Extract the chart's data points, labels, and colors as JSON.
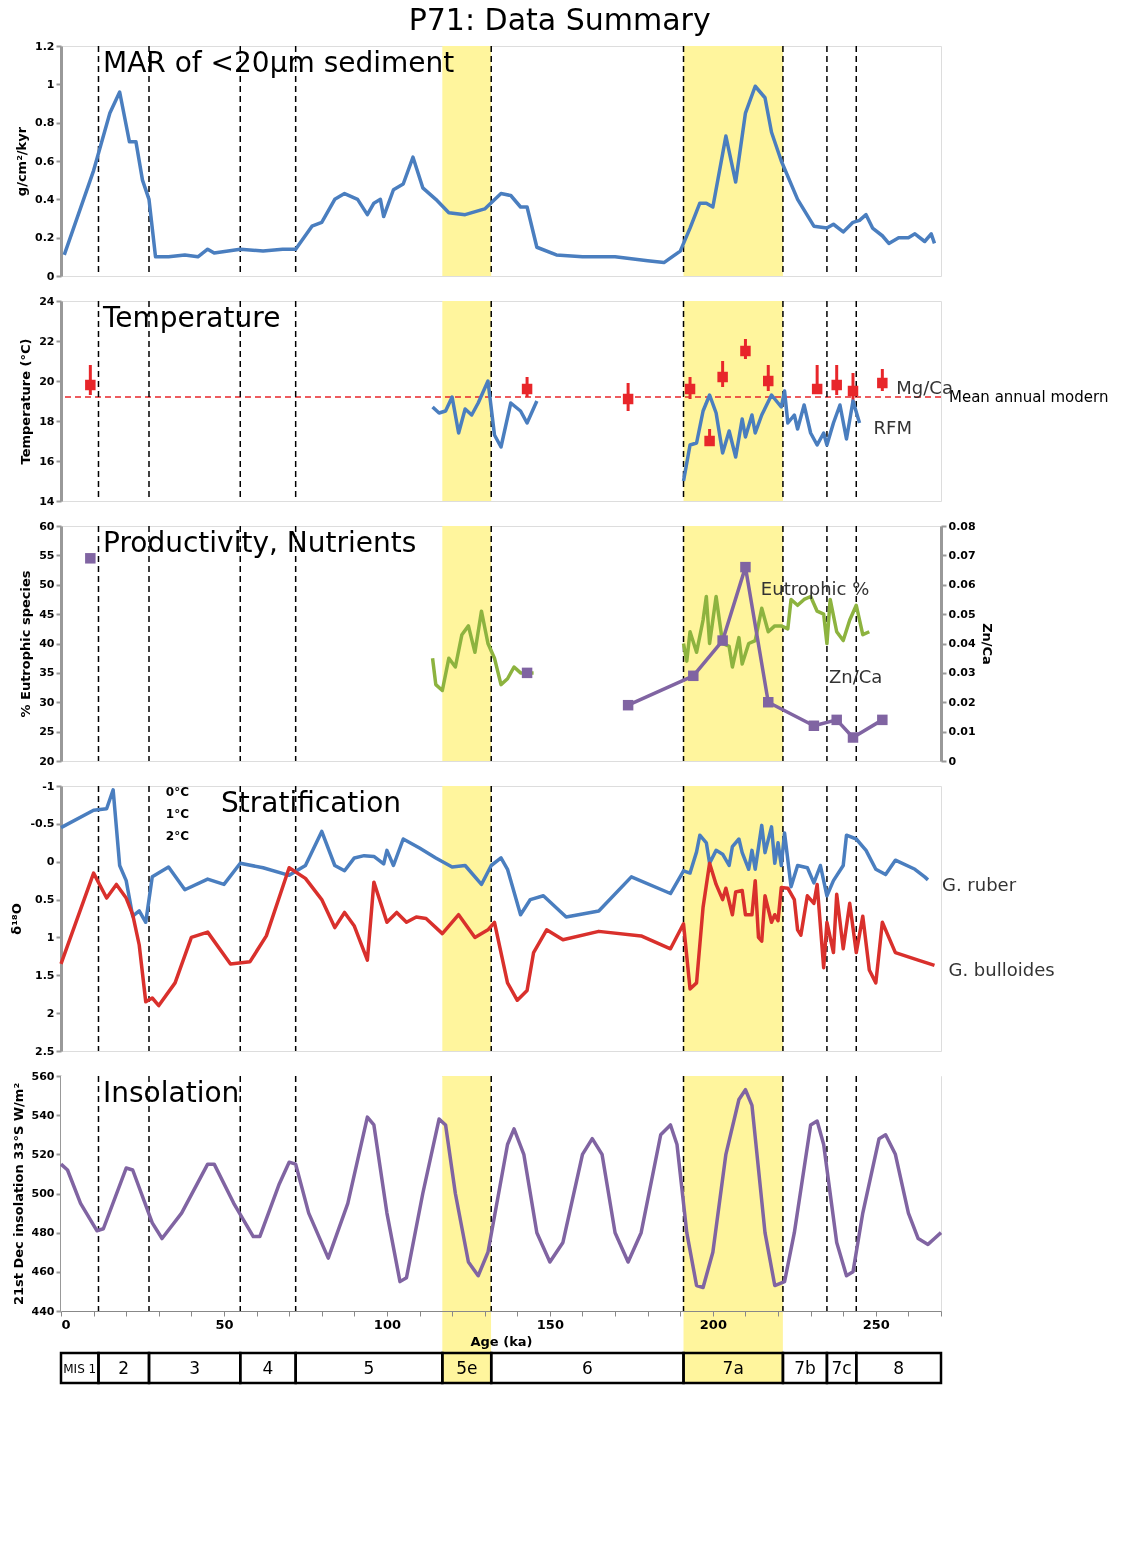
{
  "chart_data": [
    {
      "type": "line",
      "title": "P71: Data Summary",
      "annotations": [
        "MAR of <20µm sediment"
      ],
      "ylabel": "g/cm²/kyr",
      "tick_labels": "y",
      "xlim": [
        0,
        270
      ],
      "ylim": [
        0,
        1.2
      ],
      "yticks": [
        0,
        0.2,
        0.4,
        0.6,
        0.8,
        1,
        1.2
      ],
      "series": [
        {
          "color": "#4a7ebf",
          "x": [
            1,
            10,
            15,
            18,
            21,
            23,
            25,
            27,
            29,
            33,
            38,
            42,
            45,
            47,
            55,
            62,
            68,
            72,
            77,
            80,
            84,
            87,
            91,
            94,
            96,
            98,
            99,
            102,
            105,
            108,
            111,
            115,
            119,
            124,
            130,
            135,
            138,
            141,
            143,
            146,
            152,
            160,
            170,
            180,
            185,
            190,
            193,
            196,
            198,
            200,
            204,
            207,
            210,
            213,
            216,
            218,
            221,
            226,
            231,
            235,
            237,
            240,
            243,
            245,
            247,
            249,
            252,
            254,
            257,
            260,
            262,
            265,
            267,
            268
          ],
          "values": [
            0.11,
            0.55,
            0.85,
            0.96,
            0.7,
            0.7,
            0.5,
            0.4,
            0.1,
            0.1,
            0.11,
            0.1,
            0.14,
            0.12,
            0.14,
            0.13,
            0.14,
            0.14,
            0.26,
            0.28,
            0.4,
            0.43,
            0.4,
            0.32,
            0.38,
            0.4,
            0.31,
            0.45,
            0.48,
            0.62,
            0.46,
            0.4,
            0.33,
            0.32,
            0.35,
            0.43,
            0.42,
            0.36,
            0.36,
            0.15,
            0.11,
            0.1,
            0.1,
            0.08,
            0.07,
            0.13,
            0.25,
            0.38,
            0.38,
            0.36,
            0.73,
            0.49,
            0.85,
            0.99,
            0.93,
            0.75,
            0.6,
            0.4,
            0.26,
            0.25,
            0.27,
            0.23,
            0.28,
            0.29,
            0.32,
            0.25,
            0.21,
            0.17,
            0.2,
            0.2,
            0.22,
            0.18,
            0.22,
            0.17
          ]
        }
      ],
      "bands": [
        {
          "axis": "x",
          "from": 117,
          "to": 132,
          "color": "#fff59d"
        },
        {
          "axis": "x",
          "from": 191,
          "to": 221.5,
          "color": "#fff59d"
        }
      ],
      "ref_lines": [
        {
          "axis": "x",
          "value": 11.5
        },
        {
          "axis": "x",
          "value": 27
        },
        {
          "axis": "x",
          "value": 55
        },
        {
          "axis": "x",
          "value": 72
        },
        {
          "axis": "x",
          "value": 132
        },
        {
          "axis": "x",
          "value": 191
        },
        {
          "axis": "x",
          "value": 221.5
        },
        {
          "axis": "x",
          "value": 235
        },
        {
          "axis": "x",
          "value": 244
        }
      ]
    },
    {
      "type": "line",
      "annotations": [
        "Temperature"
      ],
      "ylabel": "Temperature (°C)",
      "tick_labels": "y",
      "marker": "square",
      "xlim": [
        0,
        270
      ],
      "ylim": [
        14,
        24
      ],
      "yticks": [
        14,
        16,
        18,
        20,
        22,
        24
      ],
      "series": [
        {
          "name": "Mg/Ca",
          "type": "scatter",
          "color": "#e8262a",
          "x": [
            9,
            143,
            174,
            193,
            199,
            203,
            210,
            217,
            232,
            238,
            243,
            252
          ],
          "values": [
            19.8,
            19.6,
            19.1,
            19.6,
            17.0,
            20.2,
            21.5,
            20.0,
            19.6,
            19.8,
            19.5,
            19.9
          ],
          "errors": [
            [
              19.3,
              20.8
            ],
            [
              19.2,
              20.2
            ],
            [
              18.5,
              19.9
            ],
            [
              19.1,
              20.2
            ],
            [
              16.8,
              17.6
            ],
            [
              19.7,
              21.0
            ],
            [
              21.1,
              22.1
            ],
            [
              19.5,
              20.8
            ],
            [
              19.4,
              20.8
            ],
            [
              19.3,
              20.8
            ],
            [
              18.8,
              20.4
            ],
            [
              19.5,
              20.6
            ]
          ]
        },
        {
          "name": "RFM",
          "color": "#4a7ebf",
          "marker": "none",
          "x": [
            114,
            116,
            118,
            120,
            122,
            124,
            126,
            128,
            131,
            133,
            135,
            138,
            141,
            143,
            146,
            170,
            191,
            193,
            195,
            197,
            199,
            201,
            203,
            205,
            207,
            209,
            210,
            212,
            213,
            215,
            218,
            221,
            222,
            223,
            225,
            226,
            228,
            230,
            232,
            234,
            235,
            237,
            239,
            241,
            243,
            245
          ],
          "values": [
            18.7,
            18.4,
            18.5,
            19.2,
            17.4,
            18.6,
            18.3,
            18.9,
            20.0,
            17.3,
            16.7,
            18.9,
            18.5,
            17.9,
            19.0,
            null,
            15.0,
            16.8,
            16.9,
            18.5,
            19.3,
            18.4,
            16.4,
            17.5,
            16.2,
            18.1,
            17.2,
            18.3,
            17.4,
            18.3,
            19.3,
            18.7,
            19.5,
            17.9,
            18.3,
            17.6,
            18.8,
            17.4,
            16.8,
            17.4,
            16.8,
            17.9,
            18.8,
            17.1,
            19.0,
            17.9
          ]
        }
      ],
      "bands": [
        {
          "axis": "x",
          "from": 117,
          "to": 132,
          "color": "#fff59d"
        },
        {
          "axis": "x",
          "from": 191,
          "to": 221.5,
          "color": "#fff59d"
        }
      ],
      "ref_lines": [
        {
          "axis": "y",
          "value": 19.2,
          "label": "Mean annual modern",
          "color": "#e8262a",
          "line_style": "dashed"
        },
        {
          "axis": "x",
          "value": 11.5
        },
        {
          "axis": "x",
          "value": 27
        },
        {
          "axis": "x",
          "value": 55
        },
        {
          "axis": "x",
          "value": 72
        },
        {
          "axis": "x",
          "value": 132
        },
        {
          "axis": "x",
          "value": 191
        },
        {
          "axis": "x",
          "value": 221.5
        },
        {
          "axis": "x",
          "value": 235
        },
        {
          "axis": "x",
          "value": 244
        }
      ]
    },
    {
      "type": "line",
      "annotations": [
        "Productivity, Nutrients"
      ],
      "ylabel": "% Eutrophic species",
      "y2label": "Zn/Ca",
      "tick_labels": "y",
      "marker": "square",
      "xlim": [
        0,
        270
      ],
      "ylim": [
        20,
        60
      ],
      "yticks": [
        20,
        25,
        30,
        35,
        40,
        45,
        50,
        55,
        60
      ],
      "y2lim": [
        0,
        0.08
      ],
      "y2ticks": [
        0,
        0.01,
        0.02,
        0.03,
        0.04,
        0.05,
        0.06,
        0.07,
        0.08
      ],
      "series": [
        {
          "name": "Eutrophic %",
          "color": "#8db33f",
          "marker": "none",
          "x": [
            114,
            115,
            117,
            119,
            121,
            123,
            125,
            127,
            129,
            131,
            133,
            135,
            137,
            139,
            141,
            143,
            145,
            170,
            191,
            192,
            193,
            195,
            197,
            198,
            199,
            201,
            203,
            205,
            206,
            208,
            209,
            211,
            213,
            215,
            217,
            219,
            221,
            223,
            224,
            226,
            228,
            230,
            232,
            234,
            235,
            236,
            238,
            240,
            242,
            244,
            246,
            248
          ],
          "values": [
            37.5,
            33,
            32,
            37.5,
            36,
            41.5,
            43,
            38.5,
            45.5,
            40,
            37.5,
            33,
            34,
            36,
            35,
            35,
            35,
            null,
            40,
            37,
            42,
            38.5,
            44,
            48,
            40,
            48,
            40,
            39.5,
            36,
            41,
            36.5,
            40,
            40.5,
            46,
            42,
            43,
            43,
            42.5,
            47.5,
            46.5,
            47.5,
            48,
            45.5,
            45,
            40,
            47.5,
            42,
            40.5,
            44,
            46.5,
            41.5,
            42
          ]
        },
        {
          "name": "Zn/Ca",
          "color": "#8064a2",
          "axis": "y2",
          "x": [
            9,
            20,
            143,
            150,
            174,
            194,
            203,
            210,
            217,
            231,
            238,
            243,
            252
          ],
          "values": [
            0.069,
            null,
            0.03,
            null,
            0.019,
            0.029,
            0.041,
            0.066,
            0.02,
            0.012,
            0.014,
            0.008,
            0.014
          ]
        }
      ],
      "bands": [
        {
          "axis": "x",
          "from": 117,
          "to": 132,
          "color": "#fff59d"
        },
        {
          "axis": "x",
          "from": 191,
          "to": 221.5,
          "color": "#fff59d"
        }
      ],
      "ref_lines": [
        {
          "axis": "x",
          "value": 11.5
        },
        {
          "axis": "x",
          "value": 27
        },
        {
          "axis": "x",
          "value": 55
        },
        {
          "axis": "x",
          "value": 72
        },
        {
          "axis": "x",
          "value": 132
        },
        {
          "axis": "x",
          "value": 191
        },
        {
          "axis": "x",
          "value": 221.5
        },
        {
          "axis": "x",
          "value": 235
        },
        {
          "axis": "x",
          "value": 244
        }
      ]
    },
    {
      "type": "line",
      "annotations": [
        "Stratification",
        "0°C",
        "1°C",
        "2°C"
      ],
      "ylabel": "δ¹⁸O",
      "tick_labels": "y",
      "xlim": [
        0,
        270
      ],
      "ylim": [
        2.5,
        -1
      ],
      "yticks": [
        -1,
        -0.5,
        0,
        0.5,
        1,
        1.5,
        2,
        2.5
      ],
      "series": [
        {
          "name": "G. ruber",
          "color": "#4a7ebf",
          "x": [
            0,
            10,
            14,
            16,
            18,
            20,
            22,
            24,
            26,
            28,
            33,
            38,
            45,
            50,
            55,
            62,
            70,
            75,
            80,
            84,
            87,
            90,
            93,
            96,
            99,
            100,
            102,
            105,
            110,
            115,
            120,
            124,
            129,
            132,
            135,
            137,
            141,
            144,
            148,
            155,
            165,
            175,
            187,
            191,
            193,
            195,
            196,
            198,
            199,
            201,
            203,
            205,
            206,
            208,
            209,
            211,
            212,
            213,
            215,
            216,
            218,
            219,
            220,
            221,
            222,
            224,
            226,
            229,
            231,
            233,
            235,
            237,
            240,
            241,
            244,
            247,
            250,
            253,
            256,
            262,
            265,
            266
          ],
          "values": [
            -0.45,
            -0.68,
            -0.7,
            -0.95,
            0.05,
            0.25,
            0.72,
            0.65,
            0.8,
            0.2,
            0.07,
            0.37,
            0.23,
            0.3,
            0.02,
            0.08,
            0.18,
            0.05,
            -0.4,
            0.05,
            0.12,
            -0.05,
            -0.08,
            -0.07,
            0.03,
            -0.15,
            0.05,
            -0.3,
            -0.18,
            -0.05,
            0.07,
            0.05,
            0.3,
            0.05,
            -0.05,
            0.1,
            0.7,
            0.5,
            0.45,
            0.73,
            0.65,
            0.2,
            0.42,
            0.12,
            0.15,
            -0.13,
            -0.35,
            -0.25,
            0.02,
            -0.15,
            -0.1,
            0.05,
            -0.2,
            -0.3,
            -0.12,
            0.1,
            -0.15,
            0.1,
            -0.48,
            -0.12,
            -0.46,
            0.02,
            -0.25,
            0.05,
            -0.38,
            0.33,
            0.05,
            0.08,
            0.28,
            0.05,
            0.45,
            0.25,
            0.05,
            -0.35,
            -0.3,
            -0.15,
            0.1,
            0.17,
            -0.02,
            0.1,
            0.2,
            0.24
          ]
        },
        {
          "name": "G. bulloides",
          "color": "#d9302c",
          "x": [
            0,
            10,
            14,
            17,
            20,
            22,
            24,
            26,
            28,
            30,
            35,
            40,
            45,
            52,
            58,
            63,
            70,
            75,
            80,
            84,
            87,
            90,
            94,
            96,
            100,
            103,
            106,
            109,
            112,
            117,
            122,
            127,
            131,
            133,
            137,
            140,
            143,
            145,
            149,
            154,
            165,
            178,
            187,
            191,
            193,
            195,
            197,
            199,
            201,
            203,
            204,
            206,
            207,
            209,
            210,
            212,
            213,
            214,
            215,
            216,
            218,
            219,
            220,
            221,
            223,
            225,
            226,
            227,
            229,
            231,
            232,
            234,
            235,
            237,
            238,
            240,
            242,
            244,
            246,
            248,
            250,
            252,
            256,
            263,
            268
          ],
          "values": [
            1.35,
            0.15,
            0.48,
            0.3,
            0.48,
            0.7,
            1.1,
            1.85,
            1.8,
            1.9,
            1.6,
            1.0,
            0.93,
            1.35,
            1.32,
            0.98,
            0.08,
            0.22,
            0.5,
            0.87,
            0.67,
            0.85,
            1.3,
            0.27,
            0.8,
            0.67,
            0.8,
            0.73,
            0.75,
            0.95,
            0.7,
            1.0,
            0.9,
            0.8,
            1.6,
            1.83,
            1.7,
            1.2,
            0.9,
            1.03,
            0.92,
            0.98,
            1.15,
            0.82,
            1.68,
            1.6,
            0.6,
            0.02,
            0.3,
            0.5,
            0.35,
            0.7,
            0.4,
            0.38,
            0.7,
            0.7,
            0.25,
            1.0,
            1.05,
            0.45,
            0.8,
            0.7,
            0.78,
            0.34,
            0.35,
            0.5,
            0.9,
            0.97,
            0.45,
            0.55,
            0.3,
            1.4,
            0.8,
            1.2,
            0.43,
            1.15,
            0.55,
            1.2,
            0.72,
            1.43,
            1.6,
            0.8,
            1.2,
            1.3,
            1.37
          ]
        }
      ],
      "bands": [
        {
          "axis": "x",
          "from": 117,
          "to": 132,
          "color": "#fff59d"
        },
        {
          "axis": "x",
          "from": 191,
          "to": 221.5,
          "color": "#fff59d"
        }
      ],
      "ref_lines": [
        {
          "axis": "x",
          "value": 11.5
        },
        {
          "axis": "x",
          "value": 27
        },
        {
          "axis": "x",
          "value": 55
        },
        {
          "axis": "x",
          "value": 72
        },
        {
          "axis": "x",
          "value": 132
        },
        {
          "axis": "x",
          "value": 191
        },
        {
          "axis": "x",
          "value": 221.5
        },
        {
          "axis": "x",
          "value": 235
        },
        {
          "axis": "x",
          "value": 244
        }
      ]
    },
    {
      "type": "line",
      "annotations": [
        "Insolation"
      ],
      "ylabel": "21st Dec insolation  33°S W/m²",
      "xlabel": "Age (ka)",
      "xlim": [
        0,
        270
      ],
      "ylim": [
        440,
        560
      ],
      "yticks": [
        440,
        460,
        480,
        500,
        520,
        540,
        560
      ],
      "xticks": [
        0,
        {
          "value": 10,
          "label": null
        },
        {
          "value": 20,
          "label": null
        },
        {
          "value": 30,
          "label": null
        },
        {
          "value": 40,
          "label": null
        },
        50,
        {
          "value": 60,
          "label": null
        },
        {
          "value": 70,
          "label": null
        },
        {
          "value": 80,
          "label": null
        },
        {
          "value": 90,
          "label": null
        },
        100,
        {
          "value": 110,
          "label": null
        },
        {
          "value": 120,
          "label": null
        },
        {
          "value": 130,
          "label": null
        },
        {
          "value": 140,
          "label": null
        },
        150,
        {
          "value": 160,
          "label": null
        },
        {
          "value": 170,
          "label": null
        },
        {
          "value": 180,
          "label": null
        },
        {
          "value": 190,
          "label": null
        },
        200,
        {
          "value": 210,
          "label": null
        },
        {
          "value": 220,
          "label": null
        },
        {
          "value": 230,
          "label": null
        },
        {
          "value": 240,
          "label": null
        },
        250,
        {
          "value": 260,
          "label": null
        },
        {
          "value": 270,
          "label": null
        }
      ],
      "series": [
        {
          "color": "#8064a2",
          "x": [
            0,
            2,
            6,
            11,
            13,
            20,
            22,
            28,
            31,
            37,
            45,
            47,
            53,
            59,
            61,
            67,
            70,
            72,
            76,
            82,
            88,
            94,
            96,
            100,
            104,
            106,
            111,
            116,
            118,
            121,
            125,
            128,
            131,
            137,
            139,
            142,
            146,
            150,
            154,
            160,
            163,
            166,
            170,
            174,
            178,
            184,
            187,
            189,
            192,
            195,
            197,
            200,
            204,
            208,
            210,
            212,
            216,
            219,
            222,
            225,
            230,
            232,
            234,
            238,
            241,
            243,
            246,
            251,
            253,
            256,
            260,
            263,
            266,
            268,
            270
          ],
          "values": [
            515,
            512,
            495,
            481,
            482,
            513,
            512,
            485,
            477,
            490,
            515,
            515,
            495,
            478,
            478,
            505,
            516,
            515,
            490,
            467,
            495,
            539,
            535,
            490,
            455,
            457,
            500,
            538,
            535,
            500,
            465,
            458,
            470,
            525,
            533,
            520,
            480,
            465,
            475,
            520,
            528,
            520,
            480,
            465,
            480,
            530,
            535,
            525,
            480,
            453,
            452,
            470,
            520,
            548,
            553,
            545,
            480,
            453,
            455,
            480,
            535,
            537,
            525,
            475,
            458,
            460,
            490,
            528,
            530,
            520,
            490,
            477,
            474,
            477,
            480
          ]
        }
      ],
      "bands": [
        {
          "axis": "x",
          "from": 0,
          "to": 11.5,
          "label": "MIS 1",
          "color": "#ffffff"
        },
        {
          "axis": "x",
          "from": 11.5,
          "to": 27,
          "label": "2",
          "color": "#ffffff"
        },
        {
          "axis": "x",
          "from": 27,
          "to": 55,
          "label": "3",
          "color": "#ffffff"
        },
        {
          "axis": "x",
          "from": 55,
          "to": 72,
          "label": "4",
          "color": "#ffffff"
        },
        {
          "axis": "x",
          "from": 72,
          "to": 117,
          "label": "5",
          "color": "#ffffff"
        },
        {
          "axis": "x",
          "from": 117,
          "to": 132,
          "label": "5e",
          "color": "#fff59d"
        },
        {
          "axis": "x",
          "from": 132,
          "to": 191,
          "label": "6",
          "color": "#ffffff"
        },
        {
          "axis": "x",
          "from": 191,
          "to": 221.5,
          "label": "7a",
          "color": "#fff59d"
        },
        {
          "axis": "x",
          "from": 221.5,
          "to": 235,
          "label": "7b",
          "color": "#ffffff"
        },
        {
          "axis": "x",
          "from": 235,
          "to": 244,
          "label": "7c",
          "color": "#ffffff"
        },
        {
          "axis": "x",
          "from": 244,
          "to": 270,
          "label": "8",
          "color": "#ffffff"
        }
      ],
      "ref_lines": [
        {
          "axis": "x",
          "value": 11.5
        },
        {
          "axis": "x",
          "value": 27
        },
        {
          "axis": "x",
          "value": 55
        },
        {
          "axis": "x",
          "value": 72
        },
        {
          "axis": "x",
          "value": 132
        },
        {
          "axis": "x",
          "value": 191
        },
        {
          "axis": "x",
          "value": 221.5
        },
        {
          "axis": "x",
          "value": 235
        },
        {
          "axis": "x",
          "value": 244
        }
      ]
    }
  ]
}
